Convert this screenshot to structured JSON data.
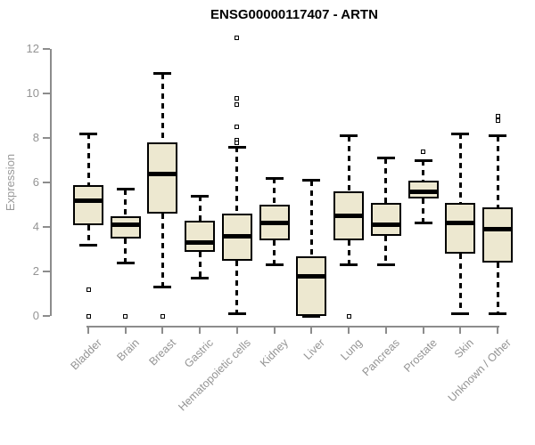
{
  "page": {
    "background": "#FFFFFF"
  },
  "chart_data": {
    "type": "boxplot",
    "title": "ENSG00000117407 - ARTN",
    "ylabel": "Expression",
    "xlabel": "",
    "ylim": [
      0,
      12
    ],
    "yticks": [
      0,
      2,
      4,
      6,
      8,
      10,
      12
    ],
    "grid": false,
    "legend": "none",
    "x_label_rotation_deg": 45,
    "colors": {
      "box_fill": "#EDE8D0",
      "box_border": "#000000",
      "median": "#000000",
      "whisker": "#000000",
      "outlier_fill": "#FFFFFF",
      "axis": "#8C8C8C",
      "tick_label": "#949494",
      "title": "#000000"
    },
    "categories": [
      "Bladder",
      "Brain",
      "Breast",
      "Gastric",
      "Hematopoietic cells",
      "Kidney",
      "Liver",
      "Lung",
      "Pancreas",
      "Prostate",
      "Skin",
      "Unknown / Other"
    ],
    "series": [
      {
        "name": "Bladder",
        "whisker_low": 3.2,
        "q1": 4.1,
        "median": 5.2,
        "q3": 5.9,
        "whisker_high": 8.2,
        "outliers": [
          1.2,
          0
        ]
      },
      {
        "name": "Brain",
        "whisker_low": 2.4,
        "q1": 3.5,
        "median": 4.1,
        "q3": 4.5,
        "whisker_high": 5.7,
        "outliers": [
          0
        ]
      },
      {
        "name": "Breast",
        "whisker_low": 1.3,
        "q1": 4.6,
        "median": 6.4,
        "q3": 7.8,
        "whisker_high": 10.9,
        "outliers": [
          0
        ]
      },
      {
        "name": "Gastric",
        "whisker_low": 1.7,
        "q1": 2.9,
        "median": 3.3,
        "q3": 4.3,
        "whisker_high": 5.4,
        "outliers": []
      },
      {
        "name": "Hematopoietic cells",
        "whisker_low": 0.1,
        "q1": 2.5,
        "median": 3.6,
        "q3": 4.6,
        "whisker_high": 7.6,
        "outliers": [
          12.5,
          9.8,
          9.5,
          8.5,
          7.9,
          7.8
        ]
      },
      {
        "name": "Kidney",
        "whisker_low": 2.3,
        "q1": 3.4,
        "median": 4.2,
        "q3": 5.0,
        "whisker_high": 6.2,
        "outliers": []
      },
      {
        "name": "Liver",
        "whisker_low": 0.0,
        "q1": 0.0,
        "median": 1.8,
        "q3": 2.7,
        "whisker_high": 6.1,
        "outliers": []
      },
      {
        "name": "Lung",
        "whisker_low": 2.3,
        "q1": 3.4,
        "median": 4.5,
        "q3": 5.6,
        "whisker_high": 8.1,
        "outliers": [
          0
        ]
      },
      {
        "name": "Pancreas",
        "whisker_low": 2.3,
        "q1": 3.6,
        "median": 4.1,
        "q3": 5.1,
        "whisker_high": 7.1,
        "outliers": []
      },
      {
        "name": "Prostate",
        "whisker_low": 4.2,
        "q1": 5.3,
        "median": 5.6,
        "q3": 6.1,
        "whisker_high": 7.0,
        "outliers": [
          7.4
        ]
      },
      {
        "name": "Skin",
        "whisker_low": 0.1,
        "q1": 2.8,
        "median": 4.2,
        "q3": 5.1,
        "whisker_high": 8.2,
        "outliers": []
      },
      {
        "name": "Unknown / Other",
        "whisker_low": 0.1,
        "q1": 2.4,
        "median": 3.9,
        "q3": 4.9,
        "whisker_high": 8.1,
        "outliers": [
          9.0,
          8.8
        ]
      }
    ]
  }
}
